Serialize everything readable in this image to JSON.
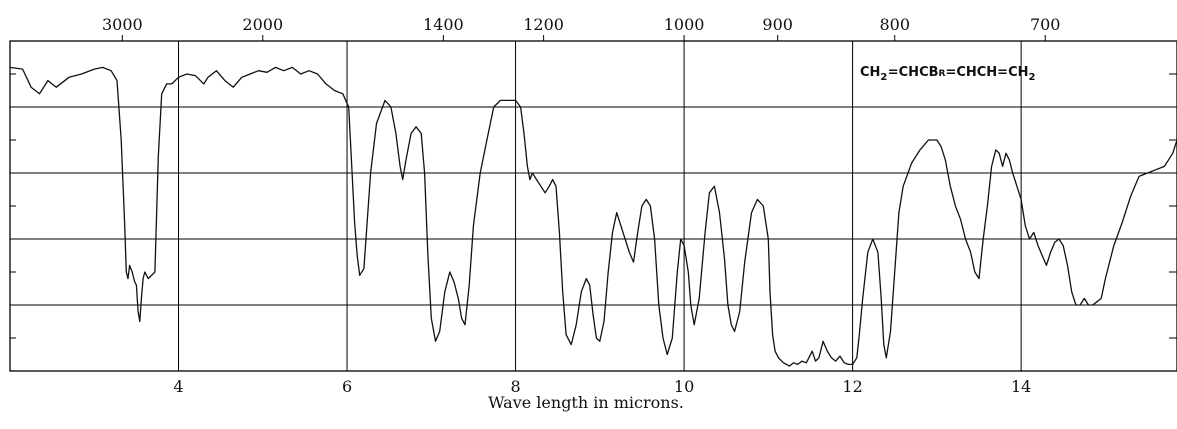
{
  "chart_data": {
    "type": "line",
    "title": "",
    "xlabel": "Wave length in microns.",
    "ylabel": "",
    "xlim": [
      2.0,
      15.85
    ],
    "ylim": [
      0,
      100
    ],
    "grid": true,
    "x_ticks_bottom": [
      4,
      6,
      8,
      10,
      12,
      14
    ],
    "x_ticks_top": [
      {
        "label": "3000",
        "micron": 3.333
      },
      {
        "label": "2000",
        "micron": 5.0
      },
      {
        "label": "1400",
        "micron": 7.143
      },
      {
        "label": "1200",
        "micron": 8.333
      },
      {
        "label": "1000",
        "micron": 10.0
      },
      {
        "label": "900",
        "micron": 11.111
      },
      {
        "label": "800",
        "micron": 12.5
      },
      {
        "label": "700",
        "micron": 14.286
      }
    ],
    "y_gridlines": [
      0,
      20,
      40,
      60,
      80,
      100
    ],
    "annotation": {
      "parts": [
        {
          "text": "CH",
          "sub": "2"
        },
        {
          "text": "=CHCB",
          "sub": ""
        },
        {
          "text": "R",
          "small": true
        },
        {
          "text": "=CHCH=CH",
          "sub": "2"
        }
      ],
      "position": "top-right"
    },
    "series": [
      {
        "points": [
          [
            2.0,
            92
          ],
          [
            2.15,
            91.5
          ],
          [
            2.25,
            86
          ],
          [
            2.35,
            84
          ],
          [
            2.45,
            88
          ],
          [
            2.55,
            86
          ],
          [
            2.7,
            89
          ],
          [
            2.85,
            90
          ],
          [
            3.0,
            91.5
          ],
          [
            3.1,
            92
          ],
          [
            3.2,
            91
          ],
          [
            3.27,
            88
          ],
          [
            3.32,
            70
          ],
          [
            3.36,
            45
          ],
          [
            3.38,
            30
          ],
          [
            3.4,
            28
          ],
          [
            3.42,
            32
          ],
          [
            3.45,
            30
          ],
          [
            3.48,
            27
          ],
          [
            3.5,
            26
          ],
          [
            3.52,
            18
          ],
          [
            3.54,
            15
          ],
          [
            3.56,
            22
          ],
          [
            3.58,
            28
          ],
          [
            3.6,
            30
          ],
          [
            3.64,
            28
          ],
          [
            3.68,
            29
          ],
          [
            3.72,
            30
          ],
          [
            3.76,
            65
          ],
          [
            3.8,
            84
          ],
          [
            3.86,
            87
          ],
          [
            3.92,
            87
          ],
          [
            4.0,
            89
          ],
          [
            4.1,
            90
          ],
          [
            4.2,
            89.5
          ],
          [
            4.3,
            87
          ],
          [
            4.35,
            89
          ],
          [
            4.45,
            91
          ],
          [
            4.55,
            88
          ],
          [
            4.65,
            86
          ],
          [
            4.75,
            89
          ],
          [
            4.85,
            90
          ],
          [
            4.95,
            91
          ],
          [
            5.05,
            90.5
          ],
          [
            5.15,
            92
          ],
          [
            5.25,
            91
          ],
          [
            5.35,
            92
          ],
          [
            5.45,
            90
          ],
          [
            5.55,
            91
          ],
          [
            5.65,
            90
          ],
          [
            5.75,
            87
          ],
          [
            5.85,
            85
          ],
          [
            5.95,
            84
          ],
          [
            6.02,
            80
          ],
          [
            6.06,
            60
          ],
          [
            6.09,
            45
          ],
          [
            6.12,
            35
          ],
          [
            6.15,
            29
          ],
          [
            6.2,
            31
          ],
          [
            6.28,
            60
          ],
          [
            6.35,
            75
          ],
          [
            6.45,
            82
          ],
          [
            6.52,
            80
          ],
          [
            6.58,
            72
          ],
          [
            6.63,
            62
          ],
          [
            6.66,
            58
          ],
          [
            6.7,
            64
          ],
          [
            6.76,
            72
          ],
          [
            6.82,
            74
          ],
          [
            6.88,
            72
          ],
          [
            6.92,
            60
          ],
          [
            6.96,
            35
          ],
          [
            7.0,
            16
          ],
          [
            7.05,
            9
          ],
          [
            7.1,
            12
          ],
          [
            7.16,
            24
          ],
          [
            7.22,
            30
          ],
          [
            7.27,
            27
          ],
          [
            7.32,
            22
          ],
          [
            7.36,
            16
          ],
          [
            7.4,
            14
          ],
          [
            7.45,
            26
          ],
          [
            7.5,
            44
          ],
          [
            7.58,
            60
          ],
          [
            7.66,
            70
          ],
          [
            7.74,
            80
          ],
          [
            7.82,
            82
          ],
          [
            7.9,
            82
          ],
          [
            8.0,
            82
          ],
          [
            8.06,
            80
          ],
          [
            8.1,
            72
          ],
          [
            8.14,
            62
          ],
          [
            8.17,
            58
          ],
          [
            8.2,
            60
          ],
          [
            8.25,
            58
          ],
          [
            8.3,
            56
          ],
          [
            8.35,
            54
          ],
          [
            8.4,
            56
          ],
          [
            8.44,
            58
          ],
          [
            8.48,
            56
          ],
          [
            8.52,
            42
          ],
          [
            8.56,
            24
          ],
          [
            8.6,
            11
          ],
          [
            8.66,
            8
          ],
          [
            8.72,
            14
          ],
          [
            8.78,
            24
          ],
          [
            8.84,
            28
          ],
          [
            8.88,
            26
          ],
          [
            8.92,
            17
          ],
          [
            8.96,
            10
          ],
          [
            9.0,
            9
          ],
          [
            9.05,
            15
          ],
          [
            9.1,
            30
          ],
          [
            9.15,
            42
          ],
          [
            9.2,
            48
          ],
          [
            9.25,
            44
          ],
          [
            9.3,
            40
          ],
          [
            9.35,
            36
          ],
          [
            9.4,
            33
          ],
          [
            9.45,
            42
          ],
          [
            9.5,
            50
          ],
          [
            9.55,
            52
          ],
          [
            9.6,
            50
          ],
          [
            9.65,
            40
          ],
          [
            9.7,
            20
          ],
          [
            9.75,
            10
          ],
          [
            9.8,
            5
          ],
          [
            9.86,
            10
          ],
          [
            9.92,
            30
          ],
          [
            9.96,
            40
          ],
          [
            10.0,
            38
          ],
          [
            10.05,
            30
          ],
          [
            10.08,
            20
          ],
          [
            10.12,
            14
          ],
          [
            10.18,
            22
          ],
          [
            10.25,
            42
          ],
          [
            10.3,
            54
          ],
          [
            10.36,
            56
          ],
          [
            10.42,
            48
          ],
          [
            10.48,
            34
          ],
          [
            10.52,
            20
          ],
          [
            10.56,
            14
          ],
          [
            10.6,
            12
          ],
          [
            10.66,
            18
          ],
          [
            10.72,
            33
          ],
          [
            10.8,
            48
          ],
          [
            10.87,
            52
          ],
          [
            10.94,
            50
          ],
          [
            11.0,
            40
          ],
          [
            11.02,
            24
          ],
          [
            11.05,
            11
          ],
          [
            11.08,
            6
          ],
          [
            11.12,
            4
          ],
          [
            11.18,
            2.5
          ],
          [
            11.25,
            1.5
          ],
          [
            11.3,
            2.5
          ],
          [
            11.35,
            2
          ],
          [
            11.4,
            3
          ],
          [
            11.45,
            2.5
          ],
          [
            11.52,
            6
          ],
          [
            11.56,
            3
          ],
          [
            11.6,
            4
          ],
          [
            11.65,
            9
          ],
          [
            11.7,
            6
          ],
          [
            11.75,
            4
          ],
          [
            11.8,
            3
          ],
          [
            11.85,
            4.5
          ],
          [
            11.9,
            2.5
          ],
          [
            11.95,
            2
          ],
          [
            12.0,
            2
          ],
          [
            12.05,
            4
          ],
          [
            12.08,
            11
          ],
          [
            12.12,
            22
          ],
          [
            12.18,
            36
          ],
          [
            12.24,
            40
          ],
          [
            12.3,
            36
          ],
          [
            12.34,
            22
          ],
          [
            12.37,
            8
          ],
          [
            12.4,
            4
          ],
          [
            12.45,
            12
          ],
          [
            12.5,
            30
          ],
          [
            12.55,
            48
          ],
          [
            12.6,
            56
          ],
          [
            12.7,
            63
          ],
          [
            12.8,
            67
          ],
          [
            12.9,
            70
          ],
          [
            13.0,
            70
          ],
          [
            13.05,
            68
          ],
          [
            13.1,
            64
          ],
          [
            13.16,
            56
          ],
          [
            13.22,
            50
          ],
          [
            13.28,
            46
          ],
          [
            13.34,
            40
          ],
          [
            13.4,
            36
          ],
          [
            13.45,
            30
          ],
          [
            13.5,
            28
          ],
          [
            13.55,
            40
          ],
          [
            13.6,
            50
          ],
          [
            13.65,
            62
          ],
          [
            13.7,
            67
          ],
          [
            13.74,
            66
          ],
          [
            13.78,
            62
          ],
          [
            13.82,
            66
          ],
          [
            13.86,
            64
          ],
          [
            13.9,
            60
          ],
          [
            13.95,
            56
          ],
          [
            14.0,
            52
          ],
          [
            14.05,
            44
          ],
          [
            14.1,
            40
          ],
          [
            14.15,
            42
          ],
          [
            14.2,
            38
          ],
          [
            14.25,
            35
          ],
          [
            14.3,
            32
          ],
          [
            14.35,
            36
          ],
          [
            14.4,
            39
          ],
          [
            14.45,
            40
          ],
          [
            14.5,
            38
          ],
          [
            14.55,
            32
          ],
          [
            14.6,
            24
          ],
          [
            14.65,
            20
          ],
          [
            14.7,
            20
          ],
          [
            14.75,
            22
          ],
          [
            14.8,
            20
          ],
          [
            14.85,
            20
          ],
          [
            14.9,
            21
          ],
          [
            14.95,
            22
          ],
          [
            15.0,
            28
          ],
          [
            15.1,
            38
          ],
          [
            15.2,
            45
          ],
          [
            15.3,
            53
          ],
          [
            15.4,
            59
          ],
          [
            15.5,
            60
          ],
          [
            15.6,
            61
          ],
          [
            15.7,
            62
          ],
          [
            15.75,
            64
          ],
          [
            15.8,
            66
          ],
          [
            15.85,
            70
          ]
        ]
      }
    ]
  }
}
